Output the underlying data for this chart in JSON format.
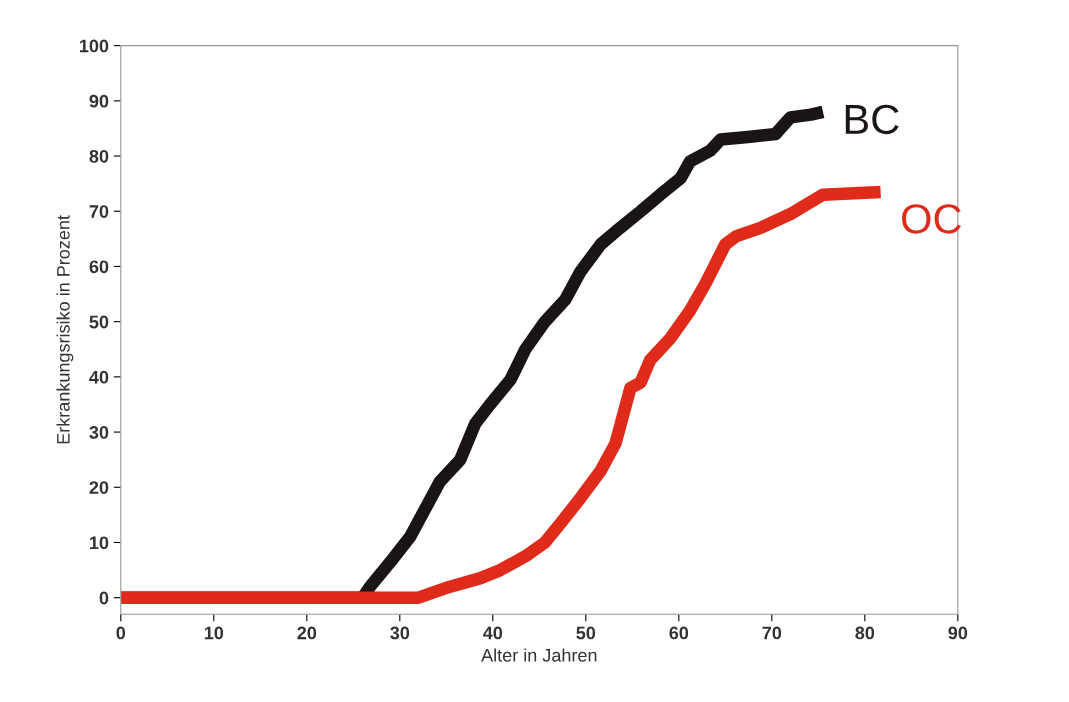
{
  "chart_data": {
    "type": "line",
    "xlabel": "Alter in Jahren",
    "ylabel": "Erkrankungsrisiko in Prozent",
    "xlim": [
      0,
      90
    ],
    "xticks": [
      0,
      10,
      20,
      30,
      40,
      50,
      60,
      70,
      80,
      90
    ],
    "ylim": [
      -3,
      100
    ],
    "yticks": [
      0,
      10,
      20,
      30,
      40,
      50,
      60,
      70,
      80,
      90,
      100
    ],
    "grid": false,
    "legend": false,
    "marker": "none",
    "line_style": "solid",
    "series": [
      {
        "name": "BC",
        "color": "#1a1414",
        "x": [
          0,
          10,
          20,
          26,
          26.8,
          29,
          31.1,
          32.7,
          34.3,
          36.5,
          38.1,
          39.7,
          41.9,
          43.5,
          45.6,
          47.8,
          49.4,
          51.6,
          53.7,
          55.9,
          58,
          60.2,
          61.2,
          63.4,
          64.5,
          67.7,
          70.4,
          72,
          74.2,
          75.5
        ],
        "values": [
          0,
          0,
          0,
          0,
          2,
          6.5,
          11,
          16,
          21,
          25,
          31.5,
          35,
          39.5,
          45,
          50,
          54,
          59,
          64,
          67,
          70,
          73,
          76,
          79,
          81,
          83,
          83.5,
          84,
          87,
          87.5,
          88
        ]
      },
      {
        "name": "OC",
        "color": "#e02a1a",
        "x": [
          0,
          10,
          20,
          32,
          35.4,
          38.6,
          40.8,
          43.5,
          45.6,
          47.3,
          49.4,
          51.6,
          53.2,
          54.8,
          55.9,
          56.9,
          59.1,
          61.2,
          62.9,
          65,
          66.2,
          68.8,
          72,
          75.5,
          81.7
        ],
        "values": [
          0,
          0,
          0,
          0,
          2,
          3.5,
          5,
          7.5,
          10,
          13.5,
          18,
          23,
          28,
          38,
          39,
          43,
          47,
          52,
          57,
          64,
          65.5,
          67,
          69.5,
          73,
          73.5
        ]
      }
    ]
  }
}
